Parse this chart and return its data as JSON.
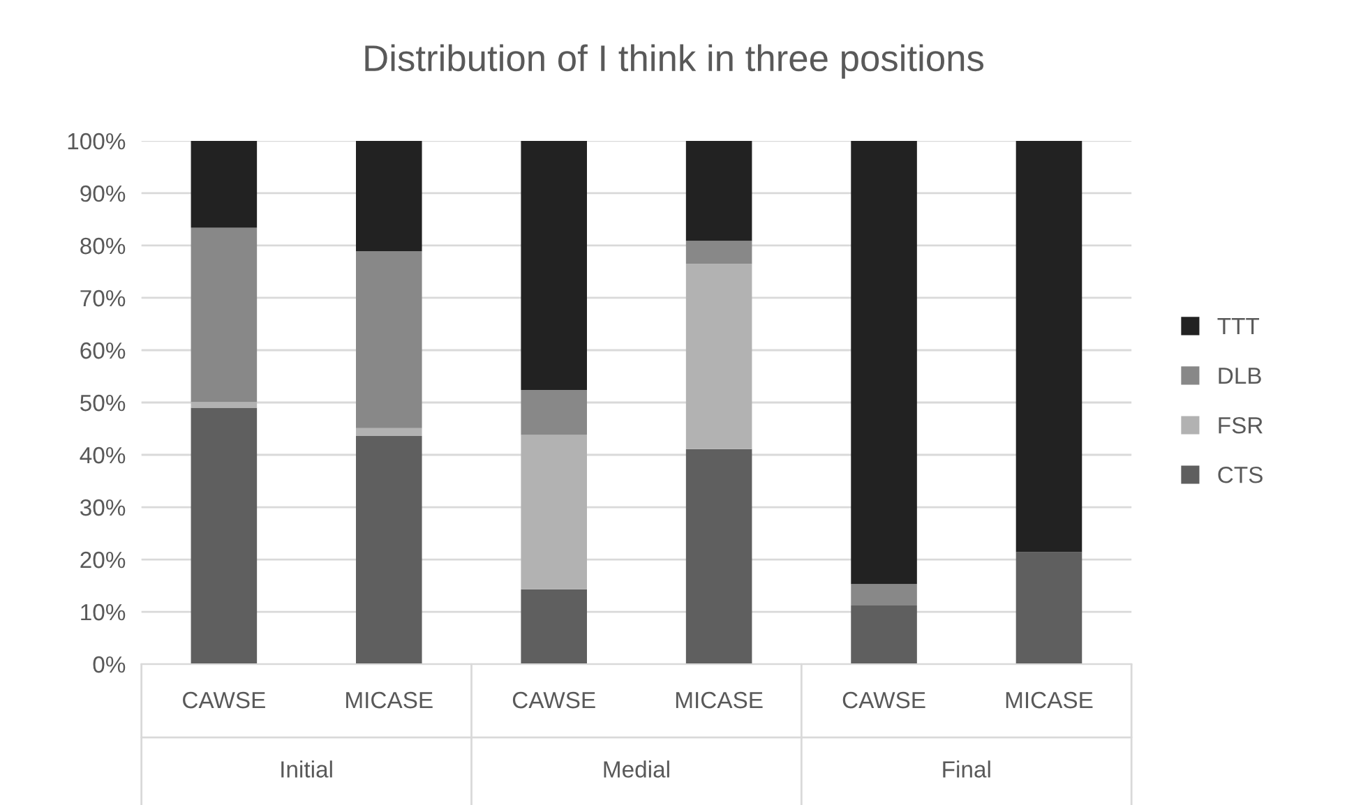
{
  "chart_data": {
    "type": "bar",
    "stacked": true,
    "title": "Distribution of I think in three positions",
    "categories": [
      "CAWSE",
      "MICASE",
      "CAWSE",
      "MICASE",
      "CAWSE",
      "MICASE"
    ],
    "series": [
      {
        "name": "CTS",
        "color": "#5f5f5f",
        "values": [
          49.0,
          43.6,
          14.3,
          41.1,
          11.2,
          21.4
        ]
      },
      {
        "name": "FSR",
        "color": "#b2b2b2",
        "values": [
          1.1,
          1.5,
          29.5,
          35.4,
          0,
          0
        ]
      },
      {
        "name": "DLB",
        "color": "#888888",
        "values": [
          33.3,
          33.8,
          8.6,
          4.4,
          4.1,
          0
        ]
      },
      {
        "name": "TTT",
        "color": "#222222",
        "values": [
          16.6,
          21.1,
          47.6,
          19.1,
          84.7,
          78.6
        ]
      }
    ],
    "annotations": [
      "Initial",
      "Medial",
      "Final"
    ],
    "ylim": [
      0,
      100
    ],
    "yticks": [
      {
        "value": 0,
        "label": "0%"
      },
      {
        "value": 10,
        "label": "10%"
      },
      {
        "value": 20,
        "label": "20%"
      },
      {
        "value": 30,
        "label": "30%"
      },
      {
        "value": 40,
        "label": "40%"
      },
      {
        "value": 50,
        "label": "50%"
      },
      {
        "value": 60,
        "label": "60%"
      },
      {
        "value": 70,
        "label": "70%"
      },
      {
        "value": 80,
        "label": "80%"
      },
      {
        "value": 90,
        "label": "90%"
      },
      {
        "value": 100,
        "label": "100%"
      }
    ],
    "grid": "y",
    "legend": "right"
  }
}
